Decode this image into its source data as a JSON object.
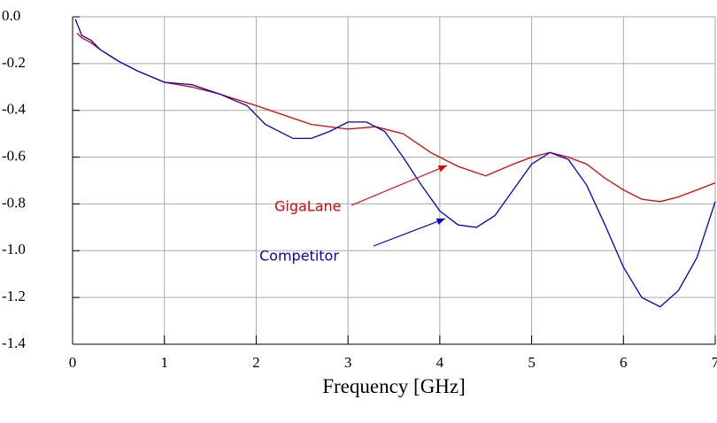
{
  "chart_data": {
    "type": "line",
    "x_label": "Frequency [GHz]",
    "xlim": [
      0,
      7
    ],
    "xticks": [
      0,
      1,
      2,
      3,
      4,
      5,
      6,
      7
    ],
    "ylim": [
      -1.4,
      0
    ],
    "yticks": [
      {
        "value": 0,
        "label": "0.0"
      },
      -0.2,
      -0.4,
      -0.6,
      -0.8,
      {
        "value": -1,
        "label": "-1.0"
      },
      -1.2,
      -1.4
    ],
    "grid": true,
    "series": [
      {
        "name": "GigaLane",
        "color": "#e00000",
        "x": [
          0.05,
          0.1,
          0.2,
          0.3,
          0.5,
          0.7,
          1.0,
          1.3,
          1.6,
          2.0,
          2.3,
          2.6,
          3.0,
          3.3,
          3.6,
          3.9,
          4.2,
          4.5,
          4.8,
          5.0,
          5.2,
          5.4,
          5.6,
          5.8,
          6.0,
          6.2,
          6.4,
          6.6,
          6.8,
          7.0
        ],
        "values": [
          -0.07,
          -0.09,
          -0.11,
          -0.14,
          -0.19,
          -0.23,
          -0.28,
          -0.3,
          -0.33,
          -0.38,
          -0.42,
          -0.46,
          -0.48,
          -0.47,
          -0.5,
          -0.58,
          -0.64,
          -0.68,
          -0.63,
          -0.6,
          -0.58,
          -0.6,
          -0.63,
          -0.69,
          -0.74,
          -0.78,
          -0.79,
          -0.77,
          -0.74,
          -0.71
        ]
      },
      {
        "name": "Competitor",
        "color": "#0000d0",
        "x": [
          0.03,
          0.05,
          0.1,
          0.2,
          0.3,
          0.5,
          0.7,
          1.0,
          1.3,
          1.6,
          1.9,
          2.1,
          2.4,
          2.6,
          2.8,
          3.0,
          3.2,
          3.4,
          3.6,
          3.8,
          4.0,
          4.2,
          4.4,
          4.6,
          4.8,
          5.0,
          5.2,
          5.4,
          5.6,
          5.8,
          6.0,
          6.2,
          6.4,
          6.6,
          6.8,
          7.0
        ],
        "values": [
          -0.01,
          -0.03,
          -0.08,
          -0.1,
          -0.14,
          -0.19,
          -0.23,
          -0.28,
          -0.29,
          -0.33,
          -0.38,
          -0.46,
          -0.52,
          -0.52,
          -0.49,
          -0.45,
          -0.45,
          -0.49,
          -0.6,
          -0.72,
          -0.83,
          -0.89,
          -0.9,
          -0.85,
          -0.74,
          -0.63,
          -0.58,
          -0.61,
          -0.72,
          -0.89,
          -1.07,
          -1.2,
          -1.24,
          -1.17,
          -1.03,
          -0.79
        ]
      }
    ]
  }
}
